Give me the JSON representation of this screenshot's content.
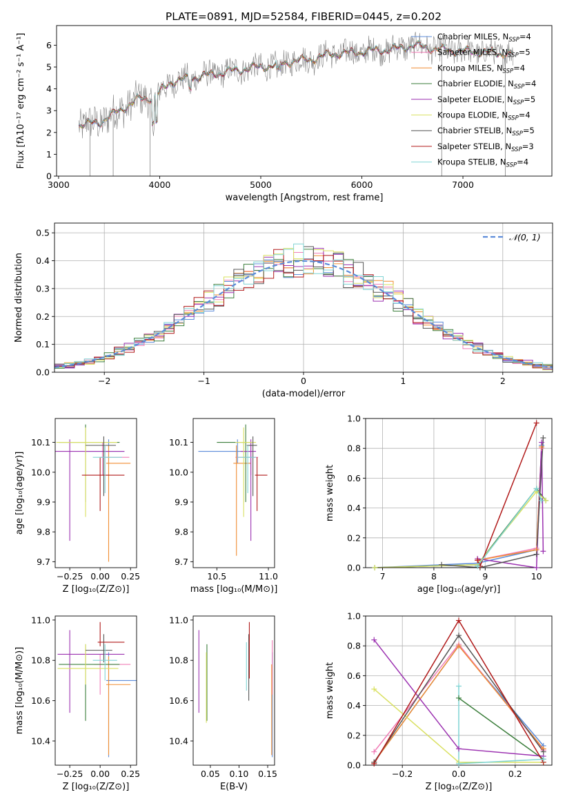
{
  "title": "PLATE=0891, MJD=52584, FIBERID=0445, z=0.202",
  "colors": {
    "Chabrier MILES": "#5b8bd9",
    "Salpeter MILES": "#f07cb6",
    "Kroupa MILES": "#f08c30",
    "Chabrier ELODIE": "#3a7d3a",
    "Salpeter ELODIE": "#9b30b0",
    "Kroupa ELODIE": "#d9e060",
    "Chabrier STELIB": "#555555",
    "Salpeter STELIB": "#b01818",
    "Kroupa STELIB": "#7fd4d4"
  },
  "chart_data": [
    {
      "type": "line",
      "id": "spectrum",
      "xlabel": "wavelength [Angstrom, rest frame]",
      "ylabel": "Flux [fλ10⁻¹⁷ erg cm⁻² s⁻¹ A⁻¹]",
      "xlim": [
        2980,
        7880
      ],
      "ylim": [
        0,
        6.9
      ],
      "xticks": [
        3000,
        4000,
        5000,
        6000,
        7000
      ],
      "yticks": [
        0,
        1,
        2,
        3,
        4,
        5,
        6
      ],
      "data_color": "#808080",
      "continuum": {
        "x": [
          3200,
          3400,
          3600,
          3800,
          3950,
          4100,
          4300,
          4500,
          4700,
          4900,
          5100,
          5300,
          5500,
          5700,
          5900,
          6100,
          6300,
          6500,
          6700,
          6900,
          7100,
          7300,
          7500
        ],
        "y": [
          2.35,
          2.45,
          3.0,
          3.55,
          3.6,
          4.3,
          4.5,
          4.65,
          4.8,
          4.95,
          5.05,
          5.25,
          5.35,
          5.6,
          5.65,
          5.75,
          5.8,
          6.0,
          5.85,
          5.75,
          5.7,
          5.65,
          5.6
        ]
      },
      "legend": [
        {
          "name": "Chabrier MILES",
          "nssp": "4"
        },
        {
          "name": "Salpeter MILES",
          "nssp": "5"
        },
        {
          "name": "Kroupa MILES",
          "nssp": "4"
        },
        {
          "name": "Chabrier ELODIE",
          "nssp": "4"
        },
        {
          "name": "Salpeter ELODIE",
          "nssp": "5"
        },
        {
          "name": "Kroupa ELODIE",
          "nssp": "4"
        },
        {
          "name": "Chabrier STELIB",
          "nssp": "5"
        },
        {
          "name": "Salpeter STELIB",
          "nssp": "3"
        },
        {
          "name": "Kroupa STELIB",
          "nssp": "4"
        }
      ],
      "legend_prefix": "N",
      "legend_sub": "SSP",
      "legend_placement": "right"
    },
    {
      "type": "step",
      "id": "residuals",
      "xlabel": "(data-model)/error",
      "ylabel": "Normed distribution",
      "xlim": [
        -2.5,
        2.5
      ],
      "ylim": [
        0,
        0.535
      ],
      "xticks": [
        -2,
        -1,
        0,
        1,
        2
      ],
      "yticks": [
        0,
        0.1,
        0.2,
        0.3,
        0.4,
        0.5
      ],
      "grid": true,
      "gaussian_label": "𝒩(0, 1)",
      "gaussian_color": "#5b8bd9",
      "bin_width": 0.1
    },
    {
      "type": "errorbar",
      "id": "age-vs-z",
      "xlabel": "Z [log₁₀(Z/Z⊙)]",
      "ylabel": "age [log₁₀(age/yr)]",
      "xlim": [
        -0.37,
        0.3
      ],
      "ylim": [
        9.68,
        10.18
      ],
      "xticks": [
        -0.25,
        0.0,
        0.25
      ],
      "yticks": [
        9.7,
        9.8,
        9.9,
        10.0,
        10.1
      ],
      "points": [
        {
          "series": "Chabrier MILES",
          "x": 0.07,
          "y": 10.07,
          "xerr": [
            0.2,
            0.13
          ],
          "yerr": [
            0.04,
            0.04
          ]
        },
        {
          "series": "Salpeter MILES",
          "x": 0.02,
          "y": 10.05,
          "xerr": [
            0.02,
            0.22
          ],
          "yerr": [
            0.06,
            0.05
          ]
        },
        {
          "series": "Kroupa MILES",
          "x": 0.07,
          "y": 10.03,
          "xerr": [
            0.02,
            0.18
          ],
          "yerr": [
            0.33,
            0.06
          ]
        },
        {
          "series": "Chabrier ELODIE",
          "x": -0.12,
          "y": 10.1,
          "xerr": [
            0.22,
            0.28
          ],
          "yerr": [
            0.2,
            0.06
          ]
        },
        {
          "series": "Salpeter ELODIE",
          "x": -0.25,
          "y": 10.07,
          "xerr": [
            0.15,
            0.45
          ],
          "yerr": [
            0.3,
            0.04
          ]
        },
        {
          "series": "Kroupa ELODIE",
          "x": -0.12,
          "y": 10.1,
          "xerr": [
            0.24,
            0.26
          ],
          "yerr": [
            0.25,
            0.05
          ]
        },
        {
          "series": "Chabrier STELIB",
          "x": 0.03,
          "y": 10.09,
          "xerr": [
            0.15,
            0.1
          ],
          "yerr": [
            0.17,
            0.03
          ]
        },
        {
          "series": "Salpeter STELIB",
          "x": 0.0,
          "y": 9.99,
          "xerr": [
            0.15,
            0.2
          ],
          "yerr": [
            0.12,
            0.06
          ]
        },
        {
          "series": "Kroupa STELIB",
          "x": 0.04,
          "y": 10.05,
          "xerr": [
            0.1,
            0.14
          ],
          "yerr": [
            0.12,
            0.04
          ]
        }
      ]
    },
    {
      "type": "errorbar",
      "id": "age-vs-mass",
      "xlabel": "mass [log₁₀(M/M⊙)]",
      "ylabel": "",
      "xlim": [
        10.27,
        11.06
      ],
      "ylim": [
        9.68,
        10.18
      ],
      "xticks": [
        10.5,
        11.0
      ],
      "yticks": [
        9.7,
        9.8,
        9.9,
        10.0,
        10.1
      ],
      "points": [
        {
          "series": "Chabrier MILES",
          "x": 10.7,
          "y": 10.07,
          "xerr": [
            0.38,
            0.14
          ],
          "yerr": [
            0.04,
            0.04
          ]
        },
        {
          "series": "Salpeter MILES",
          "x": 10.83,
          "y": 10.05,
          "xerr": [
            0.15,
            0.07
          ],
          "yerr": [
            0.06,
            0.05
          ]
        },
        {
          "series": "Kroupa MILES",
          "x": 10.69,
          "y": 10.03,
          "xerr": [
            0.03,
            0.14
          ],
          "yerr": [
            0.31,
            0.06
          ]
        },
        {
          "series": "Chabrier ELODIE",
          "x": 10.78,
          "y": 10.1,
          "xerr": [
            0.28,
            0.07
          ],
          "yerr": [
            0.2,
            0.06
          ]
        },
        {
          "series": "Salpeter ELODIE",
          "x": 10.83,
          "y": 10.07,
          "xerr": [
            0.1,
            0.05
          ],
          "yerr": [
            0.3,
            0.04
          ]
        },
        {
          "series": "Kroupa ELODIE",
          "x": 10.76,
          "y": 10.1,
          "xerr": [
            0.08,
            0.12
          ],
          "yerr": [
            0.25,
            0.05
          ]
        },
        {
          "series": "Chabrier STELIB",
          "x": 10.85,
          "y": 10.09,
          "xerr": [
            0.06,
            0.04
          ],
          "yerr": [
            0.17,
            0.03
          ]
        },
        {
          "series": "Salpeter STELIB",
          "x": 10.89,
          "y": 9.99,
          "xerr": [
            0.02,
            0.1
          ],
          "yerr": [
            0.12,
            0.06
          ]
        },
        {
          "series": "Kroupa STELIB",
          "x": 10.8,
          "y": 10.05,
          "xerr": [
            0.1,
            0.08
          ],
          "yerr": [
            0.12,
            0.04
          ]
        }
      ]
    },
    {
      "type": "line",
      "id": "weight-vs-age",
      "xlabel": "age [log₁₀(age/yr)]",
      "ylabel": "mass weight",
      "xlim": [
        6.67,
        10.3
      ],
      "ylim": [
        0,
        1.0
      ],
      "xticks": [
        7,
        8,
        9,
        10
      ],
      "yticks": [
        0.0,
        0.2,
        0.4,
        0.6,
        0.8,
        1.0
      ],
      "grid": true,
      "series": [
        {
          "name": "Chabrier MILES",
          "x": [
            6.85,
            8.85,
            10.0,
            10.1
          ],
          "y": [
            0.0,
            0.03,
            0.12,
            0.82
          ]
        },
        {
          "name": "Salpeter MILES",
          "x": [
            8.85,
            10.0,
            10.1
          ],
          "y": [
            0.05,
            0.13,
            0.8
          ]
        },
        {
          "name": "Kroupa MILES",
          "x": [
            8.85,
            10.0,
            10.1
          ],
          "y": [
            0.05,
            0.12,
            0.81
          ]
        },
        {
          "name": "Chabrier ELODIE",
          "x": [
            6.85,
            8.85,
            10.0,
            10.18
          ],
          "y": [
            0.0,
            0.02,
            0.53,
            0.45
          ]
        },
        {
          "name": "Salpeter ELODIE",
          "x": [
            8.85,
            10.0,
            10.1,
            10.13
          ],
          "y": [
            0.06,
            0.0,
            0.84,
            0.11
          ]
        },
        {
          "name": "Kroupa ELODIE",
          "x": [
            6.85,
            8.85,
            10.0,
            10.18
          ],
          "y": [
            0.0,
            0.02,
            0.51,
            0.45
          ]
        },
        {
          "name": "Chabrier STELIB",
          "x": [
            8.15,
            8.9,
            10.0,
            10.13
          ],
          "y": [
            0.02,
            0.0,
            0.09,
            0.87
          ]
        },
        {
          "name": "Salpeter STELIB",
          "x": [
            8.85,
            8.9,
            10.0
          ],
          "y": [
            0.05,
            0.01,
            0.97
          ]
        },
        {
          "name": "Kroupa STELIB",
          "x": [
            8.85,
            10.0,
            10.1
          ],
          "y": [
            0.01,
            0.53,
            0.45
          ]
        }
      ]
    },
    {
      "type": "errorbar",
      "id": "mass-vs-z",
      "xlabel": "Z [log₁₀(Z/Z⊙)]",
      "ylabel": "mass [log₁₀(M/M⊙)]",
      "xlim": [
        -0.37,
        0.3
      ],
      "ylim": [
        10.28,
        11.02
      ],
      "xticks": [
        -0.25,
        0.0,
        0.25
      ],
      "yticks": [
        10.4,
        10.6,
        10.8,
        11.0
      ],
      "points": [
        {
          "series": "Chabrier MILES",
          "x": 0.07,
          "y": 10.7,
          "xerr": [
            0.02,
            0.23
          ],
          "yerr": [
            0.38,
            0.14
          ]
        },
        {
          "series": "Salpeter MILES",
          "x": 0.0,
          "y": 10.78,
          "xerr": [
            0.05,
            0.25
          ],
          "yerr": [
            0.15,
            0.05
          ]
        },
        {
          "series": "Kroupa MILES",
          "x": 0.07,
          "y": 10.68,
          "xerr": [
            0.02,
            0.18
          ],
          "yerr": [
            0.35,
            0.14
          ]
        },
        {
          "series": "Chabrier ELODIE",
          "x": -0.12,
          "y": 10.78,
          "xerr": [
            0.22,
            0.28
          ],
          "yerr": [
            0.28,
            0.1
          ]
        },
        {
          "series": "Salpeter ELODIE",
          "x": -0.25,
          "y": 10.83,
          "xerr": [
            0.1,
            0.45
          ],
          "yerr": [
            0.29,
            0.12
          ]
        },
        {
          "series": "Kroupa ELODIE",
          "x": -0.12,
          "y": 10.76,
          "xerr": [
            0.23,
            0.27
          ],
          "yerr": [
            0.08,
            0.12
          ]
        },
        {
          "series": "Chabrier STELIB",
          "x": 0.03,
          "y": 10.85,
          "xerr": [
            0.15,
            0.07
          ],
          "yerr": [
            0.06,
            0.08
          ]
        },
        {
          "series": "Salpeter STELIB",
          "x": 0.0,
          "y": 10.89,
          "xerr": [
            0.02,
            0.2
          ],
          "yerr": [
            0.02,
            0.1
          ]
        },
        {
          "series": "Kroupa STELIB",
          "x": 0.04,
          "y": 10.8,
          "xerr": [
            0.1,
            0.1
          ],
          "yerr": [
            0.1,
            0.08
          ]
        }
      ]
    },
    {
      "type": "errorbar",
      "id": "mass-vs-ebv",
      "xlabel": "E(B-V)",
      "ylabel": "",
      "xlim": [
        0.02,
        0.162
      ],
      "ylim": [
        10.28,
        11.02
      ],
      "xticks": [
        0.05,
        0.1,
        0.15
      ],
      "yticks": [
        10.4,
        10.6,
        10.8,
        11.0
      ],
      "points": [
        {
          "series": "Chabrier MILES",
          "x": 0.158,
          "y": 10.7,
          "yerr": [
            0.38,
            0.14
          ]
        },
        {
          "series": "Salpeter MILES",
          "x": 0.158,
          "y": 10.78,
          "yerr": [
            0.15,
            0.12
          ]
        },
        {
          "series": "Kroupa MILES",
          "x": 0.157,
          "y": 10.68,
          "yerr": [
            0.35,
            0.1
          ]
        },
        {
          "series": "Chabrier ELODIE",
          "x": 0.044,
          "y": 10.78,
          "yerr": [
            0.28,
            0.1
          ]
        },
        {
          "series": "Salpeter ELODIE",
          "x": 0.03,
          "y": 10.83,
          "yerr": [
            0.29,
            0.12
          ]
        },
        {
          "series": "Kroupa ELODIE",
          "x": 0.043,
          "y": 10.76,
          "yerr": [
            0.27,
            0.08
          ]
        },
        {
          "series": "Chabrier STELIB",
          "x": 0.117,
          "y": 10.85,
          "yerr": [
            0.25,
            0.08
          ]
        },
        {
          "series": "Salpeter STELIB",
          "x": 0.118,
          "y": 10.89,
          "yerr": [
            0.18,
            0.1
          ]
        },
        {
          "series": "Kroupa STELIB",
          "x": 0.113,
          "y": 10.8,
          "yerr": [
            0.15,
            0.09
          ]
        }
      ]
    },
    {
      "type": "line",
      "id": "weight-vs-z",
      "xlabel": "Z [log₁₀(Z/Z⊙)]",
      "ylabel": "mass weight",
      "xlim": [
        -0.33,
        0.33
      ],
      "ylim": [
        0,
        1.0
      ],
      "xticks": [
        -0.2,
        0.0,
        0.2
      ],
      "yticks": [
        0.0,
        0.2,
        0.4,
        0.6,
        0.8,
        1.0
      ],
      "grid": true,
      "series": [
        {
          "name": "Chabrier MILES",
          "x": [
            -0.3,
            0.0,
            0.3
          ],
          "y": [
            0.02,
            0.8,
            0.13
          ]
        },
        {
          "name": "Salpeter MILES",
          "x": [
            -0.3,
            0.0,
            0.3
          ],
          "y": [
            0.09,
            0.81,
            0.1
          ]
        },
        {
          "name": "Kroupa MILES",
          "x": [
            -0.3,
            0.0,
            0.3
          ],
          "y": [
            0.02,
            0.8,
            0.11
          ]
        },
        {
          "name": "Chabrier ELODIE",
          "x": [
            0.0,
            0.3
          ],
          "y": [
            0.45,
            0.04
          ]
        },
        {
          "name": "Salpeter ELODIE",
          "x": [
            -0.3,
            0.0,
            0.3
          ],
          "y": [
            0.84,
            0.11,
            0.06
          ]
        },
        {
          "name": "Kroupa ELODIE",
          "x": [
            -0.3,
            0.0,
            0.3
          ],
          "y": [
            0.51,
            0.02,
            0.02
          ]
        },
        {
          "name": "Chabrier STELIB",
          "x": [
            -0.3,
            0.0,
            0.3
          ],
          "y": [
            0.02,
            0.87,
            0.09
          ]
        },
        {
          "name": "Salpeter STELIB",
          "x": [
            -0.3,
            0.0,
            0.3
          ],
          "y": [
            0.01,
            0.97,
            0.02
          ]
        },
        {
          "name": "Kroupa STELIB",
          "x": [
            0.0,
            0.0,
            0.3
          ],
          "y": [
            0.53,
            0.01,
            0.04
          ]
        }
      ]
    }
  ]
}
